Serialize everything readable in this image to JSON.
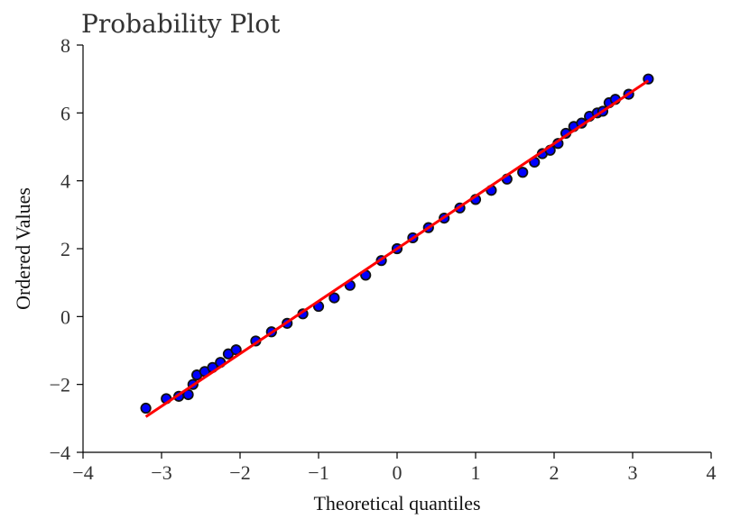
{
  "chart_data": {
    "type": "scatter",
    "title": "Probability Plot",
    "xlabel": "Theoretical quantiles",
    "ylabel": "Ordered Values",
    "xlim": [
      -4,
      4
    ],
    "ylim": [
      -4,
      8
    ],
    "xticks": [
      -4,
      -3,
      -2,
      -1,
      0,
      1,
      2,
      3,
      4
    ],
    "yticks": [
      -4,
      -2,
      0,
      2,
      4,
      6,
      8
    ],
    "xtick_labels": [
      "−4",
      "−3",
      "−2",
      "−1",
      "0",
      "1",
      "2",
      "3",
      "4"
    ],
    "ytick_labels": [
      "−4",
      "−2",
      "0",
      "2",
      "4",
      "6",
      "8"
    ],
    "grid": false,
    "series": [
      {
        "kind": "points",
        "color": "#0000ff",
        "points": [
          [
            -3.2,
            -2.7
          ],
          [
            -2.94,
            -2.42
          ],
          [
            -2.78,
            -2.35
          ],
          [
            -2.66,
            -2.3
          ],
          [
            -2.6,
            -2.0
          ],
          [
            -2.55,
            -1.72
          ],
          [
            -2.45,
            -1.62
          ],
          [
            -2.35,
            -1.5
          ],
          [
            -2.25,
            -1.35
          ],
          [
            -2.15,
            -1.1
          ],
          [
            -2.05,
            -0.98
          ],
          [
            -1.8,
            -0.72
          ],
          [
            -1.6,
            -0.45
          ],
          [
            -1.4,
            -0.2
          ],
          [
            -1.2,
            0.08
          ],
          [
            -1.0,
            0.3
          ],
          [
            -0.8,
            0.55
          ],
          [
            -0.6,
            0.92
          ],
          [
            -0.4,
            1.22
          ],
          [
            -0.2,
            1.65
          ],
          [
            0.0,
            2.0
          ],
          [
            0.2,
            2.32
          ],
          [
            0.4,
            2.62
          ],
          [
            0.6,
            2.9
          ],
          [
            0.8,
            3.2
          ],
          [
            1.0,
            3.45
          ],
          [
            1.2,
            3.72
          ],
          [
            1.4,
            4.05
          ],
          [
            1.6,
            4.25
          ],
          [
            1.75,
            4.55
          ],
          [
            1.85,
            4.8
          ],
          [
            1.95,
            4.9
          ],
          [
            2.05,
            5.1
          ],
          [
            2.15,
            5.4
          ],
          [
            2.25,
            5.6
          ],
          [
            2.35,
            5.7
          ],
          [
            2.45,
            5.9
          ],
          [
            2.55,
            6.0
          ],
          [
            2.62,
            6.05
          ],
          [
            2.7,
            6.3
          ],
          [
            2.78,
            6.4
          ],
          [
            2.95,
            6.55
          ],
          [
            3.2,
            7.0
          ]
        ]
      },
      {
        "kind": "fit-line",
        "color": "#ff0000",
        "x": [
          -3.2,
          3.2
        ],
        "y": [
          -2.95,
          6.95
        ]
      }
    ]
  }
}
